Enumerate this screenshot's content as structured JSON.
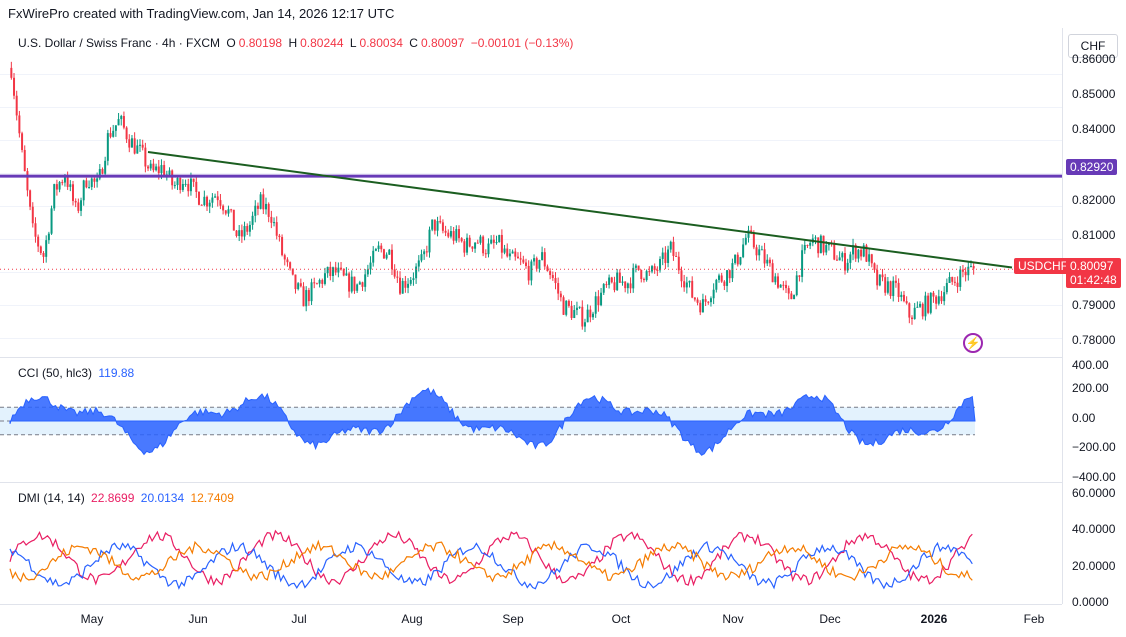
{
  "header": {
    "credit": "FxWirePro created with TradingView.com, Jan 14, 2026 12:17 UTC"
  },
  "main_legend": {
    "symbol": "U.S. Dollar / Swiss Franc · 4h · FXCM",
    "o_label": "O",
    "o_value": "0.80198",
    "h_label": "H",
    "h_value": "0.80244",
    "l_label": "L",
    "l_value": "0.80034",
    "c_label": "C",
    "c_value": "0.80097",
    "change": "−0.00101 (−0.13%)"
  },
  "currency_button": "CHF",
  "price_axis": [
    "0.86000",
    "0.85000",
    "0.84000",
    "0.83000",
    "0.82000",
    "0.81000",
    "0.80000",
    "0.79000",
    "0.78000"
  ],
  "hline_price_label": "0.82920",
  "symbol_tag": "USDCHF",
  "last_price": "0.80097",
  "countdown": "01:42:48",
  "cci": {
    "label": "CCI (50, hlc3)",
    "value": "119.88",
    "axis": [
      "400.00",
      "200.00",
      "0.00",
      "−200.00",
      "−400.00"
    ]
  },
  "dmi": {
    "label": "DMI (14, 14)",
    "v1": "22.8699",
    "v2": "20.0134",
    "v3": "12.7409",
    "axis": [
      "60.0000",
      "40.0000",
      "20.0000",
      "0.0000"
    ]
  },
  "time_axis": [
    "May",
    "Jun",
    "Jul",
    "Aug",
    "Sep",
    "Oct",
    "Nov",
    "Dec",
    "2026",
    "Feb"
  ],
  "colors": {
    "up": "#089981",
    "down": "#f23645",
    "hline": "#673ab7",
    "trend": "#1b5e20",
    "cci": "#2962ff",
    "dmi_plus": "#e91e63",
    "dmi_minus": "#2962ff",
    "adx": "#f57c00"
  },
  "chart_data": {
    "type": "candlestick",
    "title": "U.S. Dollar / Swiss Franc · 4h · FXCM",
    "ylim": [
      0.775,
      0.865
    ],
    "path_closes": [
      0.862,
      0.835,
      0.812,
      0.805,
      0.825,
      0.83,
      0.818,
      0.829,
      0.826,
      0.842,
      0.846,
      0.84,
      0.836,
      0.83,
      0.832,
      0.826,
      0.829,
      0.824,
      0.822,
      0.824,
      0.819,
      0.81,
      0.814,
      0.821,
      0.818,
      0.806,
      0.797,
      0.792,
      0.795,
      0.799,
      0.8,
      0.797,
      0.796,
      0.801,
      0.807,
      0.806,
      0.796,
      0.799,
      0.803,
      0.815,
      0.812,
      0.811,
      0.808,
      0.81,
      0.807,
      0.809,
      0.804,
      0.803,
      0.8,
      0.805,
      0.799,
      0.79,
      0.788,
      0.786,
      0.791,
      0.795,
      0.797,
      0.797,
      0.801,
      0.799,
      0.802,
      0.807,
      0.8,
      0.793,
      0.79,
      0.797,
      0.799,
      0.803,
      0.811,
      0.807,
      0.802,
      0.797,
      0.791,
      0.803,
      0.81,
      0.808,
      0.806,
      0.803,
      0.807,
      0.806,
      0.797,
      0.796,
      0.794,
      0.787,
      0.789,
      0.791,
      0.794,
      0.797,
      0.8,
      0.801
    ],
    "hline": 0.8292,
    "trendline": {
      "from": 0.8365,
      "to": 0.8015
    }
  }
}
